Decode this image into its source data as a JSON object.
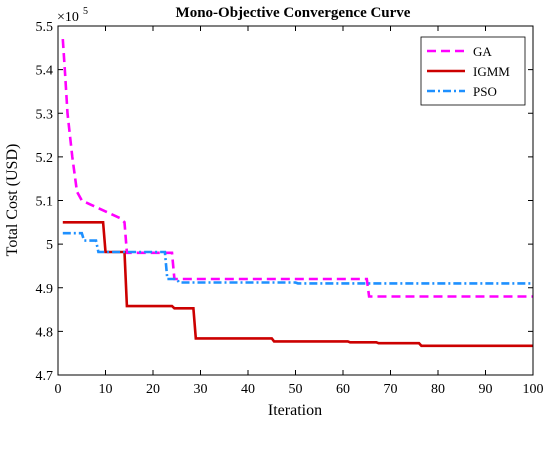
{
  "chart_data": {
    "type": "line",
    "title": "Mono-Objective Convergence Curve",
    "xlabel": "Iteration",
    "ylabel": "Total Cost (USD)",
    "y_multiplier": {
      "base": "×10",
      "exponent": "5"
    },
    "xlim": [
      0,
      100
    ],
    "ylim": [
      4.7,
      5.5
    ],
    "x_ticks": [
      0,
      10,
      20,
      30,
      40,
      50,
      60,
      70,
      80,
      90,
      100
    ],
    "y_ticks": [
      4.7,
      4.8,
      4.9,
      5.0,
      5.1,
      5.2,
      5.3,
      5.4,
      5.5
    ],
    "y_tick_labels": [
      "4.7",
      "4.8",
      "4.9",
      "5",
      "5.1",
      "5.2",
      "5.3",
      "5.4",
      "5.5"
    ],
    "grid": false,
    "legend_position": "top-right",
    "series": [
      {
        "name": "GA",
        "color": "#ff00ff",
        "style": "dashed",
        "points": [
          [
            1,
            5.47
          ],
          [
            1.5,
            5.39
          ],
          [
            2,
            5.3
          ],
          [
            3,
            5.2
          ],
          [
            4,
            5.12
          ],
          [
            5,
            5.1
          ],
          [
            7,
            5.09
          ],
          [
            10,
            5.075
          ],
          [
            13,
            5.06
          ],
          [
            14,
            5.05
          ],
          [
            14.5,
            4.98
          ],
          [
            24,
            4.98
          ],
          [
            24.5,
            4.92
          ],
          [
            65,
            4.92
          ],
          [
            65.5,
            4.88
          ],
          [
            100,
            4.88
          ]
        ]
      },
      {
        "name": "IGMM",
        "color": "#cc0000",
        "style": "solid",
        "points": [
          [
            1,
            5.05
          ],
          [
            9.5,
            5.05
          ],
          [
            10,
            4.982
          ],
          [
            14,
            4.982
          ],
          [
            14.5,
            4.858
          ],
          [
            24,
            4.858
          ],
          [
            24.5,
            4.853
          ],
          [
            28.5,
            4.853
          ],
          [
            29,
            4.784
          ],
          [
            45,
            4.784
          ],
          [
            45.5,
            4.777
          ],
          [
            61,
            4.777
          ],
          [
            61.5,
            4.775
          ],
          [
            67,
            4.775
          ],
          [
            67.5,
            4.773
          ],
          [
            76,
            4.773
          ],
          [
            76.5,
            4.767
          ],
          [
            100,
            4.767
          ]
        ]
      },
      {
        "name": "PSO",
        "color": "#1e90ff",
        "style": "dashdot",
        "points": [
          [
            1,
            5.025
          ],
          [
            5,
            5.025
          ],
          [
            5.5,
            5.008
          ],
          [
            8,
            5.008
          ],
          [
            8.5,
            4.982
          ],
          [
            22.5,
            4.982
          ],
          [
            23,
            4.92
          ],
          [
            25,
            4.92
          ],
          [
            25.5,
            4.912
          ],
          [
            50,
            4.912
          ],
          [
            50.5,
            4.91
          ],
          [
            100,
            4.91
          ]
        ]
      }
    ]
  }
}
